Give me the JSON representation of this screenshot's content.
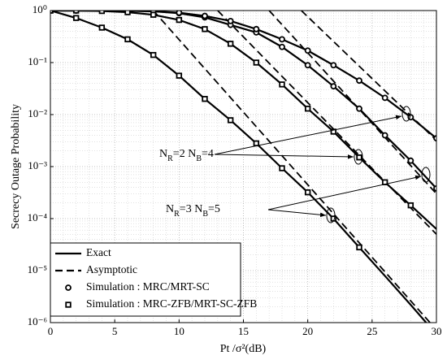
{
  "chart_data": {
    "type": "line",
    "xlabel": "Pt /σ²(dB)",
    "ylabel": "Secrecy Outage Probability",
    "xlim": [
      0,
      30
    ],
    "xticks": [
      0,
      5,
      10,
      15,
      20,
      25,
      30
    ],
    "ylim": [
      1e-06,
      1
    ],
    "log_y": true,
    "grid": true,
    "yticks": [
      {
        "value": 1,
        "label": "10⁰"
      },
      {
        "value": 0.1,
        "label": "10⁻¹"
      },
      {
        "value": 0.01,
        "label": "10⁻²"
      },
      {
        "value": 0.001,
        "label": "10⁻³"
      },
      {
        "value": 0.0001,
        "label": "10⁻⁴"
      },
      {
        "value": 1e-05,
        "label": "10⁻⁵"
      },
      {
        "value": 1e-06,
        "label": "10⁻⁶"
      }
    ],
    "legend_position": "lower left",
    "color": "#000000",
    "series": [
      {
        "name": "Exact",
        "style": "solid",
        "curves": [
          {
            "x": [
              0,
              2,
              4,
              6,
              8,
              10,
              12,
              14,
              16,
              18,
              20,
              22,
              24,
              26,
              28,
              29.2
            ],
            "values": [
              1,
              0.72,
              0.47,
              0.28,
              0.14,
              0.056,
              0.02,
              0.0078,
              0.0028,
              0.00093,
              0.00032,
              0.0001,
              2.8e-05,
              7.9e-06,
              2.2e-06,
              1e-06
            ]
          },
          {
            "x": [
              0,
              2,
              4,
              6,
              8,
              10,
              12,
              14,
              16,
              18,
              20,
              22,
              24,
              26,
              28,
              30
            ],
            "values": [
              1,
              1,
              0.98,
              0.93,
              0.83,
              0.66,
              0.44,
              0.23,
              0.1,
              0.038,
              0.013,
              0.0047,
              0.0015,
              0.0005,
              0.00018,
              6.3e-05
            ]
          },
          {
            "x": [
              0,
              2,
              4,
              6,
              8,
              10,
              12,
              14,
              16,
              18,
              20,
              22,
              24,
              26,
              28,
              30
            ],
            "values": [
              1,
              1,
              1,
              0.99,
              0.97,
              0.89,
              0.74,
              0.53,
              0.38,
              0.2,
              0.089,
              0.035,
              0.013,
              0.004,
              0.0013,
              0.00038
            ]
          },
          {
            "x": [
              0,
              2,
              4,
              6,
              8,
              10,
              12,
              14,
              16,
              18,
              20,
              22,
              24,
              26,
              28,
              30
            ],
            "values": [
              1,
              1,
              1,
              0.99,
              0.97,
              0.91,
              0.79,
              0.63,
              0.44,
              0.28,
              0.17,
              0.089,
              0.045,
              0.021,
              0.0089,
              0.0035
            ]
          }
        ]
      },
      {
        "name": "Asymptotic",
        "style": "dashed",
        "curves": [
          {
            "x": [
              8,
              29.5
            ],
            "values": [
              1,
              1e-06
            ]
          },
          {
            "x": [
              13,
              30
            ],
            "values": [
              1,
              5e-05
            ]
          },
          {
            "x": [
              17,
              30
            ],
            "values": [
              1,
              0.0003
            ]
          },
          {
            "x": [
              19.5,
              30
            ],
            "values": [
              1,
              0.0032
            ]
          }
        ]
      },
      {
        "name": "Simulation : MRC/MRT-SC",
        "marker": "circle",
        "curves": [
          {
            "x": [
              0,
              2,
              4,
              6,
              8,
              10,
              12,
              14,
              16,
              18,
              20,
              22,
              24,
              26,
              28,
              30
            ],
            "values": [
              1,
              1,
              1,
              0.99,
              0.97,
              0.89,
              0.74,
              0.53,
              0.38,
              0.2,
              0.089,
              0.035,
              0.013,
              0.004,
              0.0013,
              0.00038
            ]
          },
          {
            "x": [
              0,
              2,
              4,
              6,
              8,
              10,
              12,
              14,
              16,
              18,
              20,
              22,
              24,
              26,
              28,
              30
            ],
            "values": [
              1,
              1,
              1,
              0.99,
              0.97,
              0.91,
              0.79,
              0.63,
              0.44,
              0.28,
              0.17,
              0.089,
              0.045,
              0.021,
              0.0089,
              0.0035
            ]
          }
        ]
      },
      {
        "name": "Simulation : MRC-ZFB/MRT-SC-ZFB",
        "marker": "square",
        "curves": [
          {
            "x": [
              0,
              2,
              4,
              6,
              8,
              10,
              12,
              14,
              16,
              18,
              20,
              22,
              24
            ],
            "values": [
              1,
              0.72,
              0.47,
              0.28,
              0.14,
              0.056,
              0.02,
              0.0078,
              0.0028,
              0.00093,
              0.00032,
              0.0001,
              2.8e-05
            ]
          },
          {
            "x": [
              0,
              2,
              4,
              6,
              8,
              10,
              12,
              14,
              16,
              18,
              20,
              22,
              24,
              26,
              28
            ],
            "values": [
              1,
              1,
              0.98,
              0.93,
              0.83,
              0.66,
              0.44,
              0.23,
              0.1,
              0.038,
              0.013,
              0.0047,
              0.0015,
              0.0005,
              0.00018
            ]
          }
        ]
      }
    ],
    "annotations": [
      {
        "parts": [
          "N",
          "R",
          "=2  N",
          "B",
          "=4"
        ]
      },
      {
        "parts": [
          "N",
          "R",
          "=3  N",
          "B",
          "=5"
        ]
      }
    ]
  }
}
